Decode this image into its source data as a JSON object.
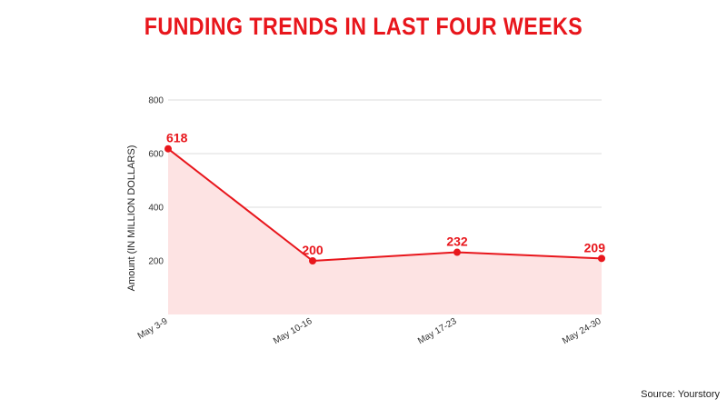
{
  "chart_data": {
    "type": "area",
    "title": "FUNDING TRENDS IN LAST FOUR WEEKS",
    "xlabel": "",
    "ylabel": "Amount (IN MILLION DOLLARS)",
    "categories": [
      "May 3-9",
      "May 10-16",
      "May 17-23",
      "May 24-30"
    ],
    "values": [
      618,
      200,
      232,
      209
    ],
    "data_labels": [
      "618",
      "200",
      "232",
      "209"
    ],
    "ylim": [
      0,
      800
    ],
    "yticks": [
      200,
      400,
      600,
      800
    ],
    "grid": true,
    "colors": {
      "line": "#e8161c",
      "fill": "#fde3e3",
      "title": "#e8161c",
      "grid": "#dddddd"
    }
  },
  "source": "Source: Yourstory"
}
